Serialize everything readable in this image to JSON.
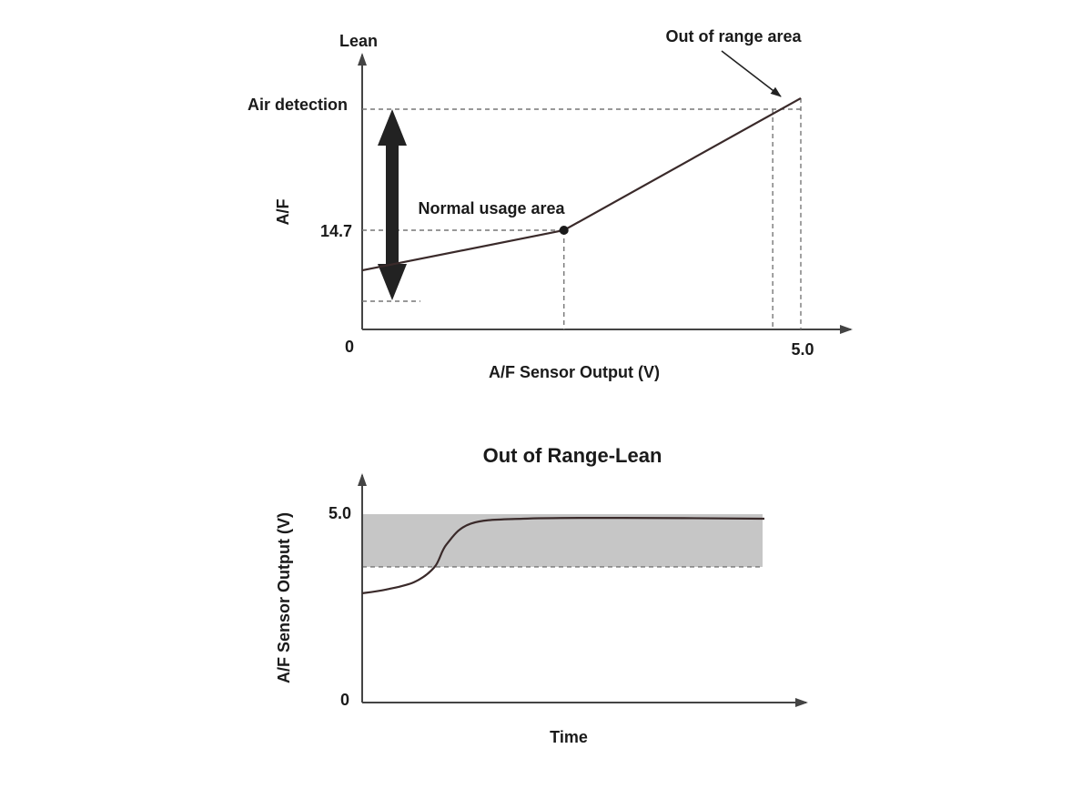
{
  "chart_data": [
    {
      "type": "line",
      "x_label": "A/F Sensor Output (V)",
      "y_label": "A/F",
      "y_top_label": "Lean",
      "x_ticks": [
        "0",
        "5.0"
      ],
      "y_tick": "14.7",
      "xlim": [
        0,
        5.0
      ],
      "annotations": {
        "air_detection": "Air detection",
        "normal_usage": "Normal usage area",
        "out_of_range": "Out of range area"
      },
      "points": [
        {
          "x": 0,
          "y": 12.3
        },
        {
          "x": 2.3,
          "y": 14.7
        },
        {
          "x": 5.0,
          "y": 22.6
        }
      ],
      "normal_point": {
        "x": 2.3,
        "y": 14.7
      },
      "air_detection_x": 4.68,
      "color": "#3a2a2a"
    },
    {
      "type": "line",
      "title": "Out of Range-Lean",
      "x_label": "Time",
      "y_label": "A/F Sensor Output (V)",
      "y_ticks": [
        "5.0",
        "0"
      ],
      "ylim": [
        0,
        5.0
      ],
      "shaded_band": [
        3.6,
        5.0
      ],
      "band_color": "#c6c6c6",
      "points": [
        {
          "t": 0.0,
          "v": 2.9
        },
        {
          "t": 0.06,
          "v": 3.0
        },
        {
          "t": 0.13,
          "v": 3.2
        },
        {
          "t": 0.18,
          "v": 3.6
        },
        {
          "t": 0.21,
          "v": 4.2
        },
        {
          "t": 0.27,
          "v": 4.75
        },
        {
          "t": 0.4,
          "v": 4.88
        },
        {
          "t": 0.65,
          "v": 4.9
        },
        {
          "t": 1.0,
          "v": 4.88
        }
      ],
      "color": "#3a2a2a"
    }
  ]
}
